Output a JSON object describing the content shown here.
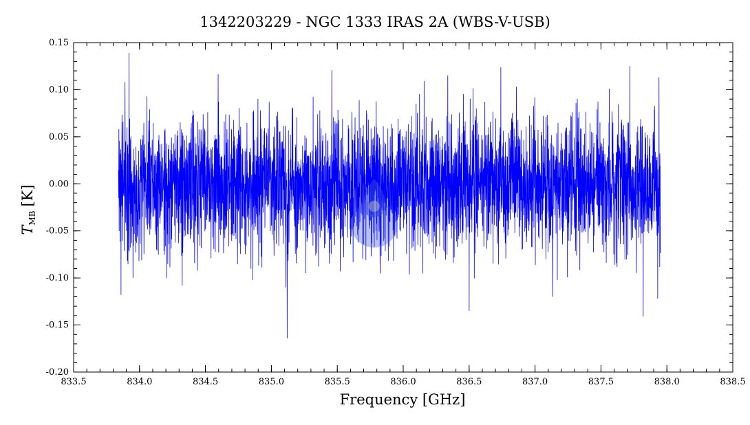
{
  "chart_data": {
    "type": "line",
    "title": "1342203229 - NGC 1333 IRAS 2A (WBS-V-USB)",
    "xlabel": "Frequency [GHz]",
    "ylabel": {
      "symbol": "T",
      "subscript": "MB",
      "unit": "[K]"
    },
    "xlim": [
      833.5,
      838.5
    ],
    "ylim": [
      -0.2,
      0.15
    ],
    "x_ticks": [
      "833.5",
      "834.0",
      "834.5",
      "835.0",
      "835.5",
      "836.0",
      "836.5",
      "837.0",
      "837.5",
      "838.0",
      "838.5"
    ],
    "y_ticks": [
      "-0.20",
      "-0.15",
      "-0.10",
      "-0.05",
      "0.00",
      "0.05",
      "0.10",
      "0.15"
    ],
    "x_minor_step": 0.1,
    "y_minor_step": 0.01,
    "grid": false,
    "series": [
      {
        "color": "#0000ff",
        "x_range": [
          833.84,
          837.95
        ],
        "baseline": 0.0,
        "noise_rms": 0.035,
        "spikes": [
          {
            "x": 833.86,
            "y": -0.118
          },
          {
            "x": 833.89,
            "y": 0.108
          },
          {
            "x": 833.92,
            "y": 0.139
          },
          {
            "x": 833.95,
            "y": -0.1
          },
          {
            "x": 835.11,
            "y": -0.11
          },
          {
            "x": 835.12,
            "y": -0.164
          },
          {
            "x": 836.5,
            "y": -0.135
          },
          {
            "x": 836.74,
            "y": 0.124
          },
          {
            "x": 837.72,
            "y": 0.125
          },
          {
            "x": 837.82,
            "y": -0.141
          },
          {
            "x": 837.93,
            "y": -0.122
          },
          {
            "x": 837.94,
            "y": 0.113
          }
        ]
      }
    ],
    "overlay_marker": {
      "x": 835.78,
      "y": -0.04,
      "color": "#3a4fd8"
    }
  }
}
